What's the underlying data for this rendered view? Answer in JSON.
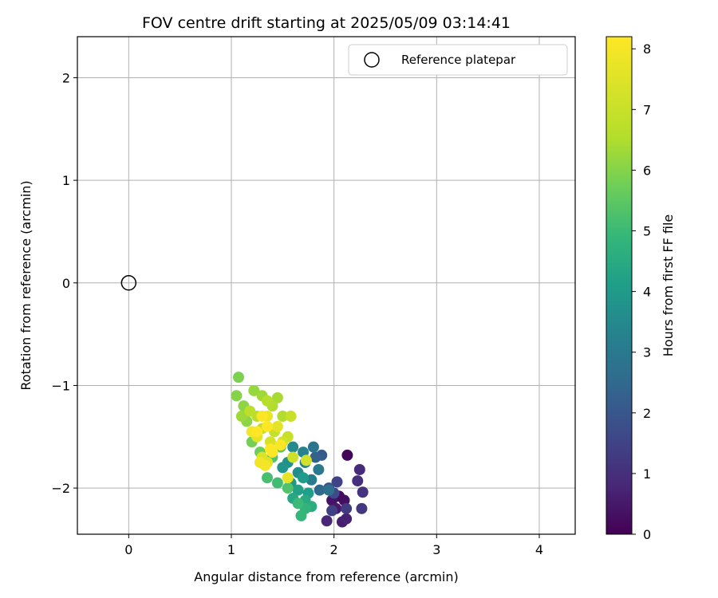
{
  "chart_data": {
    "type": "scatter",
    "title": "FOV centre drift starting at 2025/05/09 03:14:41",
    "xlabel": "Angular distance from reference (arcmin)",
    "ylabel": "Rotation from reference (arcmin)",
    "xlim": [
      -0.5,
      4.35
    ],
    "ylim": [
      -2.45,
      2.4
    ],
    "xticks": [
      0,
      1,
      2,
      3,
      4
    ],
    "yticks": [
      -2,
      -1,
      0,
      1,
      2
    ],
    "xtick_labels": [
      "0",
      "1",
      "2",
      "3",
      "4"
    ],
    "ytick_labels": [
      "−2",
      "−1",
      "0",
      "1",
      "2"
    ],
    "grid": true,
    "legend": {
      "position": "top-right",
      "entries": [
        {
          "label": "Reference platepar",
          "marker": "open-circle"
        }
      ]
    },
    "reference_point": {
      "x": 0,
      "y": 0
    },
    "colorbar": {
      "label": "Hours from first FF file",
      "range": [
        0,
        8.2
      ],
      "ticks": [
        0,
        1,
        2,
        3,
        4,
        5,
        6,
        7,
        8
      ],
      "colormap": "viridis"
    },
    "points": [
      {
        "x": 2.13,
        "y": -1.68,
        "c": 0.1
      },
      {
        "x": 2.05,
        "y": -2.08,
        "c": 0.2
      },
      {
        "x": 2.1,
        "y": -2.12,
        "c": 0.3
      },
      {
        "x": 1.98,
        "y": -2.12,
        "c": 0.4
      },
      {
        "x": 2.02,
        "y": -2.2,
        "c": 0.5
      },
      {
        "x": 2.08,
        "y": -2.33,
        "c": 0.6
      },
      {
        "x": 2.12,
        "y": -2.3,
        "c": 0.7
      },
      {
        "x": 1.93,
        "y": -2.32,
        "c": 0.8
      },
      {
        "x": 2.25,
        "y": -1.82,
        "c": 0.9
      },
      {
        "x": 2.23,
        "y": -1.93,
        "c": 1.0
      },
      {
        "x": 2.28,
        "y": -2.04,
        "c": 1.1
      },
      {
        "x": 2.27,
        "y": -2.2,
        "c": 1.2
      },
      {
        "x": 2.12,
        "y": -2.2,
        "c": 1.3
      },
      {
        "x": 1.98,
        "y": -2.22,
        "c": 1.4
      },
      {
        "x": 2.03,
        "y": -1.94,
        "c": 1.5
      },
      {
        "x": 2.0,
        "y": -2.05,
        "c": 1.7
      },
      {
        "x": 1.95,
        "y": -2.0,
        "c": 1.9
      },
      {
        "x": 1.88,
        "y": -1.68,
        "c": 2.1
      },
      {
        "x": 1.82,
        "y": -1.7,
        "c": 2.3
      },
      {
        "x": 1.86,
        "y": -2.02,
        "c": 2.5
      },
      {
        "x": 1.95,
        "y": -2.02,
        "c": 2.7
      },
      {
        "x": 1.8,
        "y": -1.6,
        "c": 2.8
      },
      {
        "x": 1.85,
        "y": -1.82,
        "c": 3.0
      },
      {
        "x": 1.78,
        "y": -1.92,
        "c": 3.1
      },
      {
        "x": 1.72,
        "y": -1.75,
        "c": 3.2
      },
      {
        "x": 1.7,
        "y": -1.65,
        "c": 3.3
      },
      {
        "x": 1.6,
        "y": -1.6,
        "c": 3.5
      },
      {
        "x": 1.65,
        "y": -1.85,
        "c": 3.6
      },
      {
        "x": 1.55,
        "y": -1.75,
        "c": 3.7
      },
      {
        "x": 1.5,
        "y": -1.8,
        "c": 3.8
      },
      {
        "x": 1.58,
        "y": -1.95,
        "c": 3.9
      },
      {
        "x": 1.7,
        "y": -1.9,
        "c": 4.0
      },
      {
        "x": 1.75,
        "y": -2.05,
        "c": 4.1
      },
      {
        "x": 1.65,
        "y": -2.02,
        "c": 4.2
      },
      {
        "x": 1.6,
        "y": -2.1,
        "c": 4.4
      },
      {
        "x": 1.72,
        "y": -2.12,
        "c": 4.5
      },
      {
        "x": 1.78,
        "y": -2.18,
        "c": 4.6
      },
      {
        "x": 1.72,
        "y": -2.2,
        "c": 4.8
      },
      {
        "x": 1.68,
        "y": -2.27,
        "c": 4.9
      },
      {
        "x": 1.65,
        "y": -2.15,
        "c": 5.0
      },
      {
        "x": 1.45,
        "y": -1.95,
        "c": 5.1
      },
      {
        "x": 1.35,
        "y": -1.9,
        "c": 5.2
      },
      {
        "x": 1.55,
        "y": -2.0,
        "c": 5.3
      },
      {
        "x": 1.4,
        "y": -1.7,
        "c": 5.4
      },
      {
        "x": 1.48,
        "y": -1.6,
        "c": 5.5
      },
      {
        "x": 1.28,
        "y": -1.65,
        "c": 5.7
      },
      {
        "x": 1.2,
        "y": -1.55,
        "c": 5.8
      },
      {
        "x": 1.07,
        "y": -0.92,
        "c": 5.9
      },
      {
        "x": 1.05,
        "y": -1.1,
        "c": 6.0
      },
      {
        "x": 1.12,
        "y": -1.2,
        "c": 6.1
      },
      {
        "x": 1.15,
        "y": -1.35,
        "c": 6.1
      },
      {
        "x": 1.22,
        "y": -1.05,
        "c": 6.2
      },
      {
        "x": 1.3,
        "y": -1.1,
        "c": 6.3
      },
      {
        "x": 1.1,
        "y": -1.3,
        "c": 6.3
      },
      {
        "x": 1.45,
        "y": -1.12,
        "c": 6.4
      },
      {
        "x": 1.5,
        "y": -1.3,
        "c": 6.5
      },
      {
        "x": 1.4,
        "y": -1.2,
        "c": 6.5
      },
      {
        "x": 1.35,
        "y": -1.15,
        "c": 6.6
      },
      {
        "x": 1.25,
        "y": -1.3,
        "c": 6.7
      },
      {
        "x": 1.18,
        "y": -1.25,
        "c": 6.7
      },
      {
        "x": 1.3,
        "y": -1.42,
        "c": 6.8
      },
      {
        "x": 1.42,
        "y": -1.45,
        "c": 6.9
      },
      {
        "x": 1.55,
        "y": -1.5,
        "c": 7.0
      },
      {
        "x": 1.58,
        "y": -1.3,
        "c": 7.0
      },
      {
        "x": 1.6,
        "y": -1.7,
        "c": 7.1
      },
      {
        "x": 1.73,
        "y": -1.73,
        "c": 7.2
      },
      {
        "x": 1.5,
        "y": -1.55,
        "c": 7.2
      },
      {
        "x": 1.38,
        "y": -1.55,
        "c": 7.3
      },
      {
        "x": 1.3,
        "y": -1.7,
        "c": 7.4
      },
      {
        "x": 1.35,
        "y": -1.75,
        "c": 7.5
      },
      {
        "x": 1.25,
        "y": -1.5,
        "c": 7.6
      },
      {
        "x": 1.45,
        "y": -1.4,
        "c": 7.6
      },
      {
        "x": 1.55,
        "y": -1.9,
        "c": 7.7
      },
      {
        "x": 1.35,
        "y": -1.3,
        "c": 7.8
      },
      {
        "x": 1.28,
        "y": -1.75,
        "c": 7.9
      },
      {
        "x": 1.2,
        "y": -1.45,
        "c": 8.0
      },
      {
        "x": 1.33,
        "y": -1.78,
        "c": 8.0
      },
      {
        "x": 1.48,
        "y": -1.58,
        "c": 8.1
      },
      {
        "x": 1.3,
        "y": -1.3,
        "c": 8.1
      },
      {
        "x": 1.4,
        "y": -1.65,
        "c": 8.2
      },
      {
        "x": 1.35,
        "y": -1.4,
        "c": 8.2
      },
      {
        "x": 1.25,
        "y": -1.45,
        "c": 8.2
      },
      {
        "x": 1.38,
        "y": -1.62,
        "c": 8.2
      }
    ]
  }
}
